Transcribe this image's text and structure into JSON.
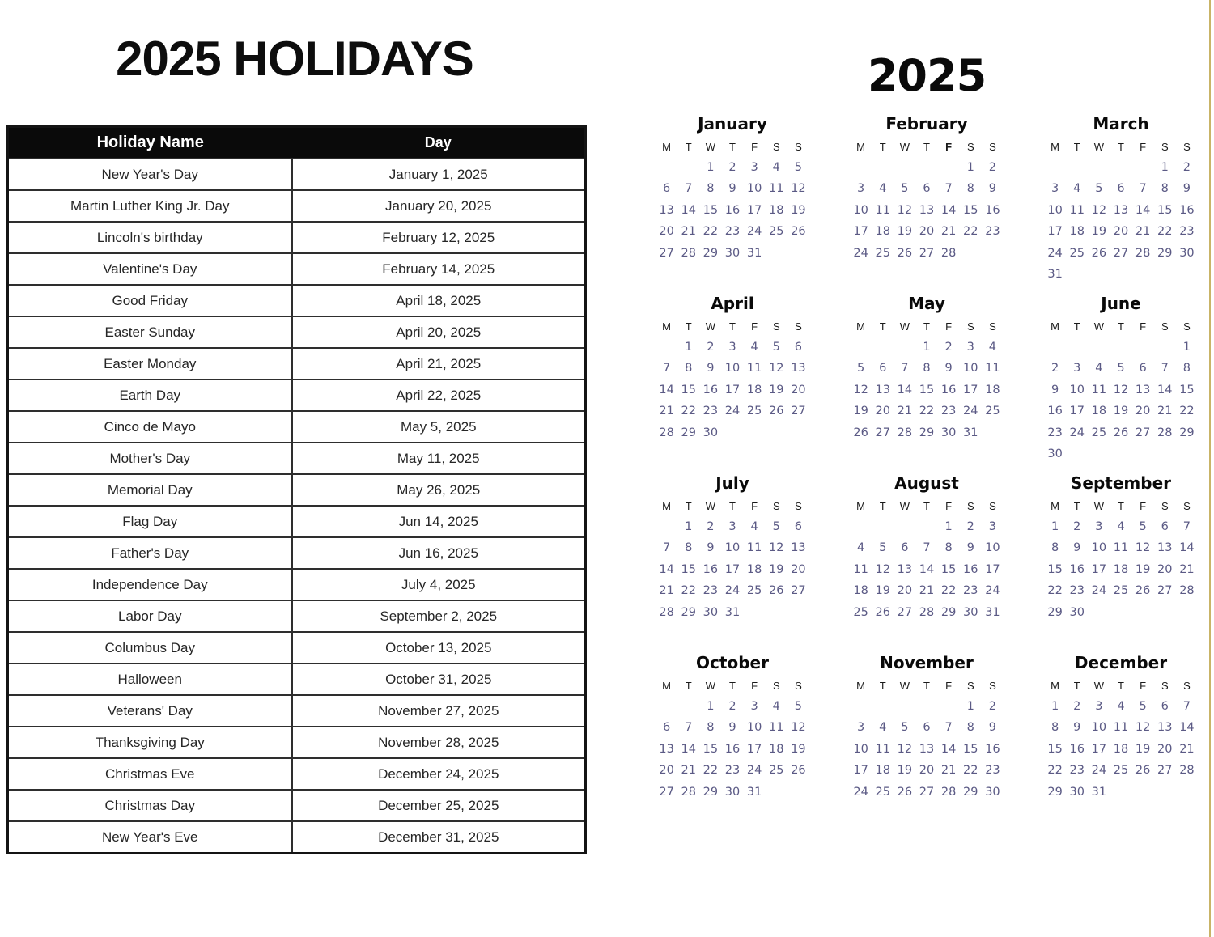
{
  "left": {
    "title": "2025 HOLIDAYS",
    "table": {
      "headers": [
        "Holiday Name",
        "Day"
      ],
      "rows": [
        {
          "name": "New Year's Day",
          "date": "January 1, 2025"
        },
        {
          "name": "Martin Luther King Jr. Day",
          "date": "January 20, 2025"
        },
        {
          "name": "Lincoln's birthday",
          "date": "February 12, 2025"
        },
        {
          "name": "Valentine's Day",
          "date": "February 14, 2025"
        },
        {
          "name": "Good Friday",
          "date": "April 18, 2025"
        },
        {
          "name": "Easter Sunday",
          "date": "April 20, 2025"
        },
        {
          "name": "Easter Monday",
          "date": "April 21, 2025"
        },
        {
          "name": "Earth Day",
          "date": "April 22, 2025"
        },
        {
          "name": "Cinco de Mayo",
          "date": "May 5, 2025"
        },
        {
          "name": "Mother's Day",
          "date": "May 11, 2025"
        },
        {
          "name": "Memorial Day",
          "date": "May 26, 2025"
        },
        {
          "name": "Flag Day",
          "date": "Jun 14, 2025"
        },
        {
          "name": "Father's Day",
          "date": "Jun 16, 2025"
        },
        {
          "name": "Independence Day",
          "date": "July 4, 2025"
        },
        {
          "name": "Labor Day",
          "date": "September 2, 2025"
        },
        {
          "name": "Columbus Day",
          "date": "October 13, 2025"
        },
        {
          "name": "Halloween",
          "date": "October 31, 2025"
        },
        {
          "name": "Veterans' Day",
          "date": "November 27, 2025"
        },
        {
          "name": "Thanksgiving Day",
          "date": "November 28, 2025"
        },
        {
          "name": "Christmas Eve",
          "date": "December 24, 2025"
        },
        {
          "name": "Christmas Day",
          "date": "December 25, 2025"
        },
        {
          "name": "New Year's Eve",
          "date": "December 31, 2025"
        }
      ]
    }
  },
  "right": {
    "year": "2025",
    "weekday_letters": [
      "M",
      "T",
      "W",
      "T",
      "F",
      "S",
      "S"
    ],
    "months": [
      {
        "name": "January",
        "start": 2,
        "days": 31
      },
      {
        "name": "February",
        "start": 5,
        "days": 28,
        "bold_weekday_index": 4
      },
      {
        "name": "March",
        "start": 5,
        "days": 31
      },
      {
        "name": "April",
        "start": 1,
        "days": 30
      },
      {
        "name": "May",
        "start": 3,
        "days": 31
      },
      {
        "name": "June",
        "start": 6,
        "days": 30
      },
      {
        "name": "July",
        "start": 1,
        "days": 31
      },
      {
        "name": "August",
        "start": 4,
        "days": 31
      },
      {
        "name": "September",
        "start": 0,
        "days": 30
      },
      {
        "name": "October",
        "start": 2,
        "days": 31
      },
      {
        "name": "November",
        "start": 5,
        "days": 30
      },
      {
        "name": "December",
        "start": 0,
        "days": 31
      }
    ]
  },
  "colors": {
    "date_text": "#5b5a85",
    "table_header_bg": "#0a0a0a",
    "table_header_text": "#ffffff",
    "edge_line": "#c9b467"
  }
}
